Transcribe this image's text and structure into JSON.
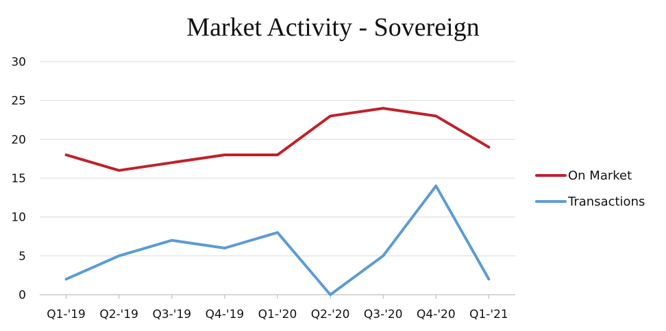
{
  "chart_data": {
    "type": "line",
    "title": "Market Activity - Sovereign",
    "xlabel": "",
    "ylabel": "",
    "categories": [
      "Q1-'19",
      "Q2-'19",
      "Q3-'19",
      "Q4-'19",
      "Q1-'20",
      "Q2-'20",
      "Q3-'20",
      "Q4-'20",
      "Q1-'21"
    ],
    "ylim": [
      0,
      30
    ],
    "yticks": [
      0,
      5,
      10,
      15,
      20,
      25,
      30
    ],
    "grid": true,
    "legend_position": "right",
    "series": [
      {
        "name": "On Market",
        "color": "#c0202a",
        "values": [
          18,
          16,
          17,
          18,
          18,
          23,
          24,
          23,
          19
        ]
      },
      {
        "name": "Transactions",
        "color": "#5b9bd5",
        "values": [
          2,
          5,
          7,
          6,
          8,
          0,
          5,
          14,
          2
        ]
      }
    ]
  }
}
